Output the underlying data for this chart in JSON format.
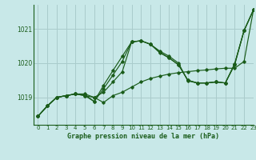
{
  "title": "Graphe pression niveau de la mer (hPa)",
  "bg_color": "#c8e8e8",
  "grid_color": "#aacccc",
  "line_color": "#1a5c1a",
  "xlim": [
    -0.5,
    23
  ],
  "ylim": [
    1018.2,
    1021.7
  ],
  "yticks": [
    1019,
    1020,
    1021
  ],
  "xticks": [
    0,
    1,
    2,
    3,
    4,
    5,
    6,
    7,
    8,
    9,
    10,
    11,
    12,
    13,
    14,
    15,
    16,
    17,
    18,
    19,
    20,
    21,
    22,
    23
  ],
  "series": [
    [
      1018.45,
      1018.75,
      1019.0,
      1019.05,
      1019.1,
      1019.05,
      1019.0,
      1018.85,
      1019.05,
      1019.15,
      1019.3,
      1019.45,
      1019.55,
      1019.62,
      1019.68,
      1019.72,
      1019.75,
      1019.78,
      1019.8,
      1019.83,
      1019.85,
      1019.85,
      1020.05,
      1021.55
    ],
    [
      1018.45,
      1018.75,
      1019.0,
      1019.05,
      1019.1,
      1019.1,
      1019.0,
      1019.15,
      1019.45,
      1019.75,
      1020.62,
      1020.65,
      1020.55,
      1020.35,
      1020.2,
      1020.0,
      1019.48,
      1019.42,
      1019.42,
      1019.45,
      1019.42,
      1019.98,
      1020.95,
      1021.55
    ],
    [
      1018.45,
      1018.75,
      1019.0,
      1019.05,
      1019.1,
      1019.05,
      1018.88,
      1019.25,
      1019.65,
      1020.05,
      1020.62,
      1020.65,
      1020.55,
      1020.32,
      1020.15,
      1019.95,
      1019.5,
      1019.42,
      1019.42,
      1019.45,
      1019.42,
      1019.95,
      1020.95,
      1021.55
    ],
    [
      1018.45,
      1018.75,
      1019.0,
      1019.05,
      1019.1,
      1019.08,
      1018.88,
      1019.35,
      1019.78,
      1020.2,
      1020.62,
      1020.65,
      1020.55,
      1020.3,
      1020.15,
      1019.95,
      1019.5,
      1019.42,
      1019.42,
      1019.45,
      1019.42,
      1019.98,
      1020.95,
      1021.55
    ]
  ]
}
